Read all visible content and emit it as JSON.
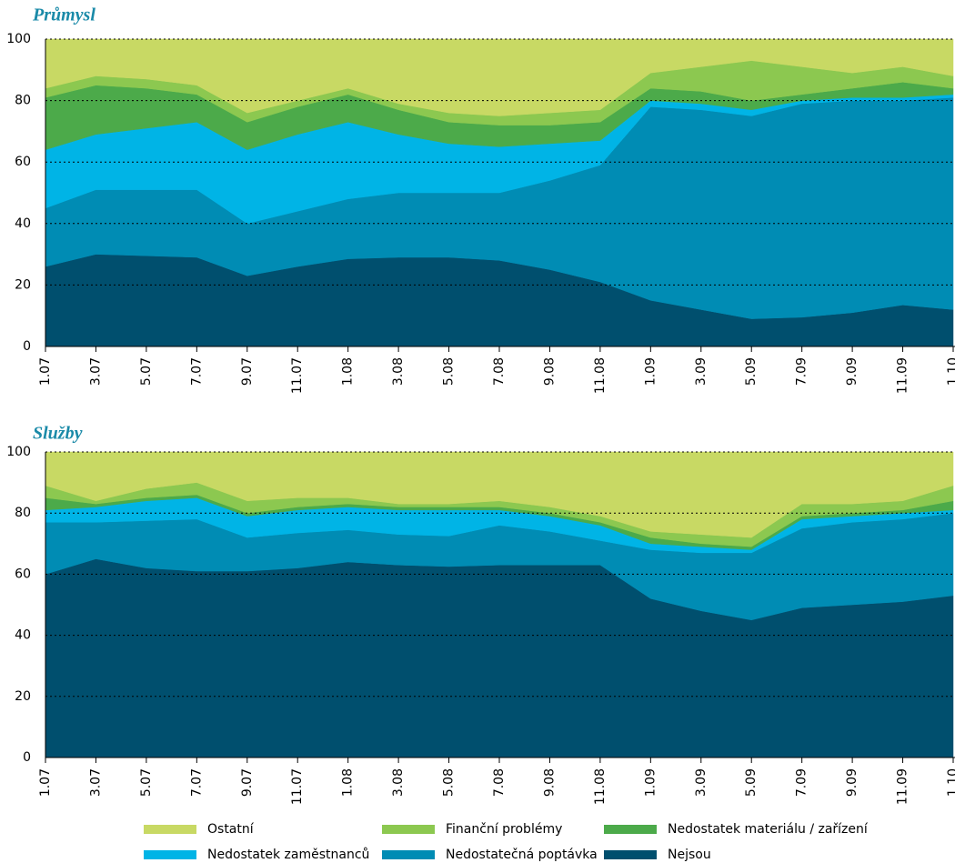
{
  "chart_data": [
    {
      "type": "stacked_area",
      "title": "Průmysl",
      "categories": [
        "1.07",
        "3.07",
        "5.07",
        "7.07",
        "9.07",
        "11.07",
        "1.08",
        "3.08",
        "5.08",
        "7.08",
        "9.08",
        "11.08",
        "1.09",
        "3.09",
        "5.09",
        "7.09",
        "9.09",
        "11.09",
        "1.10"
      ],
      "ylim": [
        0,
        100
      ],
      "yticks": [
        0,
        20,
        40,
        60,
        80,
        100
      ],
      "grid": true,
      "series": [
        {
          "name": "Nejsou",
          "color": "#004f6e",
          "values": [
            26,
            30,
            29.5,
            29,
            23,
            26,
            28.5,
            29,
            29,
            28,
            25,
            21,
            15,
            12,
            9,
            9.5,
            11,
            13.5,
            12
          ]
        },
        {
          "name": "Nedostatečná poptávka",
          "color": "#008cb4",
          "values": [
            19,
            21,
            21.5,
            22,
            17,
            18,
            19.5,
            21,
            21,
            22,
            29,
            38,
            63,
            65,
            66,
            69.5,
            69,
            66.5,
            69
          ]
        },
        {
          "name": "Nedostatek zaměstnanců",
          "color": "#00b4e6",
          "values": [
            19,
            18,
            20,
            22,
            24,
            25,
            25,
            19,
            16,
            15,
            12,
            8,
            2,
            2,
            2,
            1,
            1,
            1,
            1
          ]
        },
        {
          "name": "Nedostatek materiálu / zařízení",
          "color": "#4caa4a",
          "values": [
            17,
            16,
            13,
            9,
            9,
            9,
            9,
            8,
            7,
            7,
            6,
            6,
            4,
            4,
            3,
            2,
            3,
            5,
            2
          ]
        },
        {
          "name": "Finanční problémy",
          "color": "#8cc850",
          "values": [
            3,
            3,
            3,
            3,
            3,
            2,
            2,
            2,
            3,
            3,
            4,
            4,
            5,
            8,
            13,
            9,
            5,
            5,
            4
          ]
        },
        {
          "name": "Ostatní",
          "color": "#c8d964",
          "values": [
            16,
            12,
            13,
            15,
            24,
            20,
            16,
            21,
            24,
            25,
            24,
            23,
            11,
            9,
            7,
            9,
            11,
            9,
            12
          ]
        }
      ]
    },
    {
      "type": "stacked_area",
      "title": "Služby",
      "ylim": [
        0,
        100
      ],
      "yticks": [
        0,
        20,
        40,
        60,
        80,
        100
      ],
      "grid": true,
      "series": [
        {
          "color": "#004f6e",
          "values": [
            60,
            65,
            62,
            61,
            61,
            62,
            64,
            63,
            62.5,
            63,
            63,
            63,
            52,
            48,
            45,
            49,
            50,
            51,
            53
          ]
        },
        {
          "color": "#008cb4",
          "values": [
            17,
            12,
            15.5,
            17,
            11,
            11.5,
            10.5,
            10,
            10,
            13,
            11,
            8,
            16,
            19,
            22,
            26,
            27,
            27,
            27
          ]
        },
        {
          "color": "#00b4e6",
          "values": [
            4,
            5,
            6.5,
            7,
            7,
            7.5,
            7.5,
            8,
            8.5,
            5,
            5,
            5,
            2,
            2,
            1,
            3,
            2,
            2,
            1
          ]
        },
        {
          "color": "#4caa4a",
          "values": [
            4,
            1,
            1,
            1,
            1,
            1,
            1,
            1,
            1,
            1,
            1,
            1,
            2,
            1,
            1,
            1,
            1,
            1,
            3
          ]
        },
        {
          "color": "#8cc850",
          "values": [
            4,
            1,
            3,
            4,
            4,
            3,
            2,
            1,
            1,
            2,
            2,
            2,
            2,
            3,
            3,
            4,
            3,
            3,
            5
          ]
        },
        {
          "color": "#c8d964",
          "values": [
            11,
            16,
            12,
            10,
            16,
            15,
            15,
            17,
            17,
            16,
            18,
            21,
            26,
            27,
            28,
            17,
            17,
            16,
            11
          ]
        }
      ]
    }
  ]
}
